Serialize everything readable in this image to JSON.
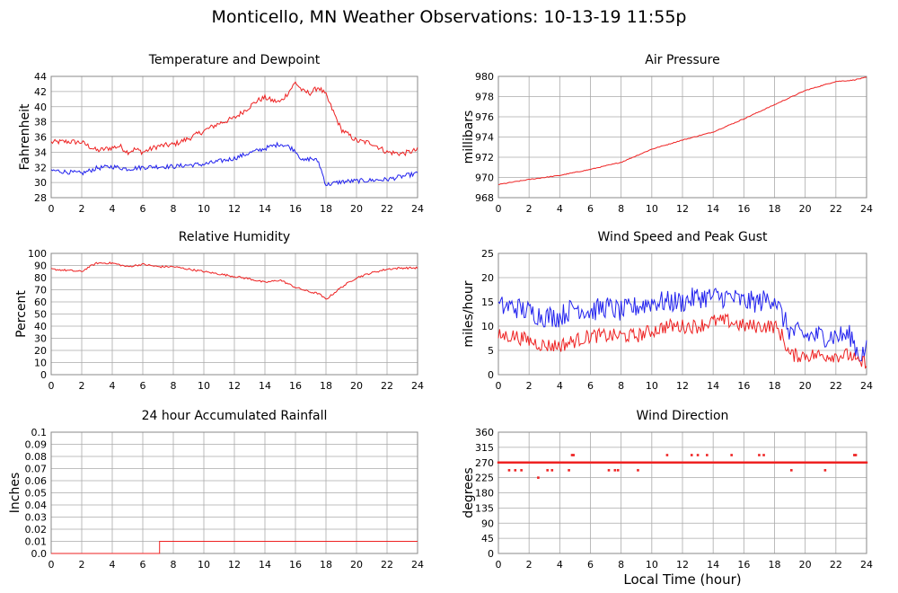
{
  "page": {
    "title": "Monticello, MN Weather Observations: 10-13-19 11:55p",
    "x_axis_caption": "Local Time (hour)"
  },
  "colors": {
    "red": "#ee2222",
    "blue": "#2222ee",
    "grid": "#aaaaaa",
    "frame": "#888888"
  },
  "chart_data": [
    {
      "id": "temp",
      "type": "line",
      "title": "Temperature and Dewpoint",
      "ylabel": "Fahrenheit",
      "xlim": [
        0,
        24
      ],
      "ylim": [
        28,
        44
      ],
      "x_ticks": [
        0,
        2,
        4,
        6,
        8,
        10,
        12,
        14,
        16,
        18,
        20,
        22,
        24
      ],
      "y_ticks": [
        28,
        30,
        32,
        34,
        36,
        38,
        40,
        42,
        44
      ],
      "grid": true,
      "series": [
        {
          "color": "red",
          "noise": 0.35,
          "x": [
            0,
            1,
            2,
            3,
            4,
            4.5,
            5,
            5.5,
            6,
            7,
            8,
            9,
            10,
            11,
            12,
            13,
            13.5,
            14,
            14.5,
            15,
            15.5,
            16,
            16.5,
            17,
            17.5,
            18,
            19,
            20,
            21,
            22,
            23,
            24
          ],
          "y": [
            35.3,
            35.4,
            35.3,
            34.2,
            34.6,
            34.8,
            34.0,
            34.4,
            34.0,
            34.8,
            35.0,
            35.8,
            36.8,
            37.8,
            38.5,
            40.0,
            40.8,
            41.2,
            40.8,
            40.6,
            41.8,
            43.2,
            42.0,
            41.8,
            42.6,
            41.5,
            37.0,
            35.5,
            35.2,
            34.0,
            33.8,
            34.3
          ]
        },
        {
          "color": "blue",
          "noise": 0.3,
          "x": [
            0,
            1,
            2,
            3,
            4,
            5,
            6,
            7,
            8,
            9,
            10,
            11,
            12,
            13,
            14,
            15,
            15.5,
            16,
            16.5,
            17,
            17.5,
            18,
            19,
            20,
            21,
            22,
            23,
            24
          ],
          "y": [
            31.6,
            31.4,
            31.2,
            31.9,
            32.1,
            31.8,
            32.0,
            32.1,
            32.1,
            32.3,
            32.4,
            32.8,
            33.2,
            33.9,
            34.5,
            35.1,
            34.8,
            34.2,
            32.8,
            33.2,
            32.8,
            29.7,
            30.1,
            30.2,
            30.3,
            30.4,
            30.8,
            31.2
          ]
        }
      ]
    },
    {
      "id": "press",
      "type": "line",
      "title": "Air Pressure",
      "ylabel": "millibars",
      "xlim": [
        0,
        24
      ],
      "ylim": [
        968,
        980
      ],
      "x_ticks": [
        0,
        2,
        4,
        6,
        8,
        10,
        12,
        14,
        16,
        18,
        20,
        22,
        24
      ],
      "y_ticks": [
        968,
        970,
        972,
        974,
        976,
        978,
        980
      ],
      "grid": true,
      "series": [
        {
          "color": "red",
          "noise": 0.04,
          "x": [
            0,
            2,
            4,
            6,
            8,
            10,
            12,
            14,
            16,
            18,
            20,
            22,
            23,
            24
          ],
          "y": [
            969.3,
            969.8,
            970.2,
            970.8,
            971.5,
            972.8,
            973.7,
            974.5,
            975.8,
            977.2,
            978.6,
            979.5,
            979.6,
            979.9
          ]
        }
      ]
    },
    {
      "id": "rh",
      "type": "line",
      "title": "Relative Humidity",
      "ylabel": "Percent",
      "xlim": [
        0,
        24
      ],
      "ylim": [
        0,
        100
      ],
      "x_ticks": [
        0,
        2,
        4,
        6,
        8,
        10,
        12,
        14,
        16,
        18,
        20,
        22,
        24
      ],
      "y_ticks": [
        0,
        10,
        20,
        30,
        40,
        50,
        60,
        70,
        80,
        90,
        100
      ],
      "grid": true,
      "series": [
        {
          "color": "red",
          "noise": 0.8,
          "x": [
            0,
            1,
            2,
            2.5,
            3,
            4,
            5,
            6,
            7,
            8,
            9,
            10,
            11,
            12,
            13,
            14,
            14.5,
            15,
            16,
            16.5,
            17,
            17.5,
            18,
            19,
            20,
            21,
            22,
            23,
            24
          ],
          "y": [
            87,
            86,
            85,
            89,
            92,
            92,
            89,
            91,
            89,
            89,
            87,
            85,
            83,
            81,
            79,
            76,
            77,
            78,
            72,
            70,
            68,
            67,
            62,
            72,
            80,
            84,
            87,
            88,
            88
          ]
        }
      ]
    },
    {
      "id": "wind",
      "type": "line",
      "title": "Wind Speed and Peak Gust",
      "ylabel": "miles/hour",
      "xlim": [
        0,
        24
      ],
      "ylim": [
        0,
        25
      ],
      "x_ticks": [
        0,
        2,
        4,
        6,
        8,
        10,
        12,
        14,
        16,
        18,
        20,
        22,
        24
      ],
      "y_ticks": [
        0,
        5,
        10,
        15,
        20,
        25
      ],
      "grid": true,
      "series": [
        {
          "color": "blue",
          "noise": 2.3,
          "x": [
            0,
            1,
            2,
            3,
            4,
            5,
            6,
            7,
            8,
            9,
            10,
            11,
            12,
            13,
            14,
            15,
            16,
            17,
            18,
            18.5,
            19,
            20,
            21,
            22,
            23,
            23.5,
            24
          ],
          "y": [
            14,
            14,
            13,
            12,
            12,
            14,
            13,
            14,
            13,
            14,
            15,
            15,
            15,
            16,
            16,
            16,
            15,
            15,
            16,
            12,
            9,
            8,
            8,
            8,
            8,
            4,
            5
          ]
        },
        {
          "color": "red",
          "noise": 1.5,
          "x": [
            0,
            1,
            2,
            3,
            4,
            5,
            6,
            7,
            8,
            9,
            10,
            11,
            12,
            13,
            14,
            15,
            16,
            17,
            18,
            18.5,
            19,
            20,
            21,
            22,
            23,
            23.5,
            24
          ],
          "y": [
            8,
            8,
            7,
            6,
            6,
            7,
            8,
            8,
            8,
            8,
            9,
            10,
            10,
            10,
            11,
            11,
            10,
            10,
            10,
            8,
            4,
            4,
            4,
            4,
            4,
            2,
            3
          ]
        }
      ]
    },
    {
      "id": "rain",
      "type": "line",
      "title": "24 hour Accumulated Rainfall",
      "ylabel": "Inches",
      "xlim": [
        0,
        24
      ],
      "ylim": [
        0,
        0.1
      ],
      "x_ticks": [
        0,
        2,
        4,
        6,
        8,
        10,
        12,
        14,
        16,
        18,
        20,
        22,
        24
      ],
      "y_ticks": [
        "0.0",
        "0.01",
        "0.02",
        "0.03",
        "0.04",
        "0.05",
        "0.06",
        "0.07",
        "0.08",
        "0.09",
        "0.1"
      ],
      "grid": true,
      "series": [
        {
          "color": "red",
          "noise": 0,
          "x": [
            0,
            7.1,
            7.1,
            24
          ],
          "y": [
            0,
            0,
            0.01,
            0.01
          ]
        }
      ]
    },
    {
      "id": "dir",
      "type": "scatter",
      "title": "Wind Direction",
      "ylabel": "degrees",
      "xlim": [
        0,
        24
      ],
      "ylim": [
        0,
        360
      ],
      "x_ticks": [
        0,
        2,
        4,
        6,
        8,
        10,
        12,
        14,
        16,
        18,
        20,
        22,
        24
      ],
      "y_ticks": [
        0,
        45,
        90,
        135,
        180,
        225,
        270,
        315,
        360
      ],
      "grid": true,
      "series": [
        {
          "color": "red",
          "baseline_value": 270,
          "x": [
            0.7,
            1.1,
            1.5,
            2.6,
            3.2,
            3.5,
            4.6,
            4.8,
            4.9,
            7.2,
            7.6,
            7.8,
            9.1,
            11.0,
            12.6,
            13.0,
            13.6,
            15.2,
            17.0,
            17.3,
            19.1,
            21.3,
            23.2,
            23.3
          ],
          "y": [
            247,
            247,
            247,
            225,
            247,
            247,
            247,
            292,
            292,
            247,
            247,
            247,
            247,
            292,
            292,
            292,
            292,
            292,
            292,
            292,
            247,
            247,
            292,
            292
          ]
        }
      ]
    }
  ]
}
